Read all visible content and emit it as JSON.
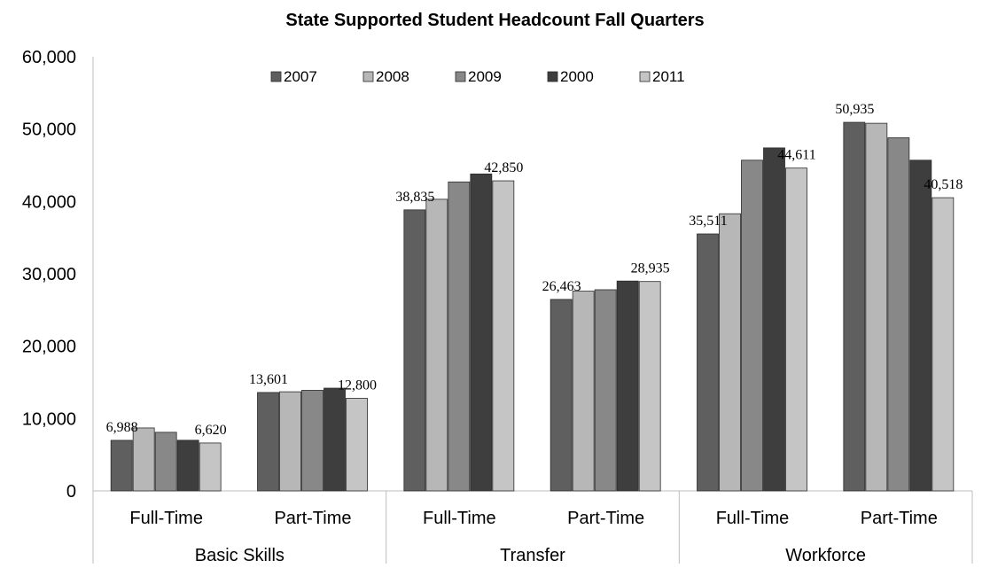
{
  "chart_data": {
    "type": "bar",
    "title": "State Supported Student Headcount Fall Quarters",
    "xlabel": "",
    "ylabel": "",
    "ylim": [
      0,
      60000
    ],
    "yticks": [
      "0",
      "10,000",
      "20,000",
      "30,000",
      "40,000",
      "50,000",
      "60,000"
    ],
    "groups": [
      {
        "name": "Basic Skills",
        "categories": [
          "Full-Time",
          "Part-Time"
        ]
      },
      {
        "name": "Transfer",
        "categories": [
          "Full-Time",
          "Part-Time"
        ]
      },
      {
        "name": "Workforce",
        "categories": [
          "Full-Time",
          "Part-Time"
        ]
      }
    ],
    "categories": [
      "Full-Time",
      "Part-Time",
      "Full-Time",
      "Part-Time",
      "Full-Time",
      "Part-Time"
    ],
    "series": [
      {
        "name": "2007",
        "color": "#5f5f5f",
        "values": [
          6988,
          13601,
          38835,
          26463,
          35511,
          50935
        ]
      },
      {
        "name": "2008",
        "color": "#b7b7b7",
        "values": [
          8700,
          13700,
          40300,
          27600,
          38300,
          50800
        ]
      },
      {
        "name": "2009",
        "color": "#888888",
        "values": [
          8100,
          13900,
          42700,
          27800,
          45700,
          48800
        ]
      },
      {
        "name": "2000",
        "color": "#3e3e3e",
        "values": [
          7000,
          14200,
          43800,
          29000,
          47400,
          45700
        ]
      },
      {
        "name": "2011",
        "color": "#c5c5c5",
        "values": [
          6620,
          12800,
          42850,
          28935,
          44611,
          40518
        ]
      }
    ],
    "data_labels": [
      {
        "series": 0,
        "index": 0,
        "text": "6,988"
      },
      {
        "series": 4,
        "index": 0,
        "text": "6,620"
      },
      {
        "series": 0,
        "index": 1,
        "text": "13,601"
      },
      {
        "series": 4,
        "index": 1,
        "text": "12,800"
      },
      {
        "series": 0,
        "index": 2,
        "text": "38,835"
      },
      {
        "series": 4,
        "index": 2,
        "text": "42,850"
      },
      {
        "series": 0,
        "index": 3,
        "text": "26,463"
      },
      {
        "series": 4,
        "index": 3,
        "text": "28,935"
      },
      {
        "series": 0,
        "index": 4,
        "text": "35,511"
      },
      {
        "series": 4,
        "index": 4,
        "text": "44,611"
      },
      {
        "series": 0,
        "index": 5,
        "text": "50,935"
      },
      {
        "series": 4,
        "index": 5,
        "text": "40,518"
      }
    ],
    "legend_position": "top",
    "grid": false
  }
}
